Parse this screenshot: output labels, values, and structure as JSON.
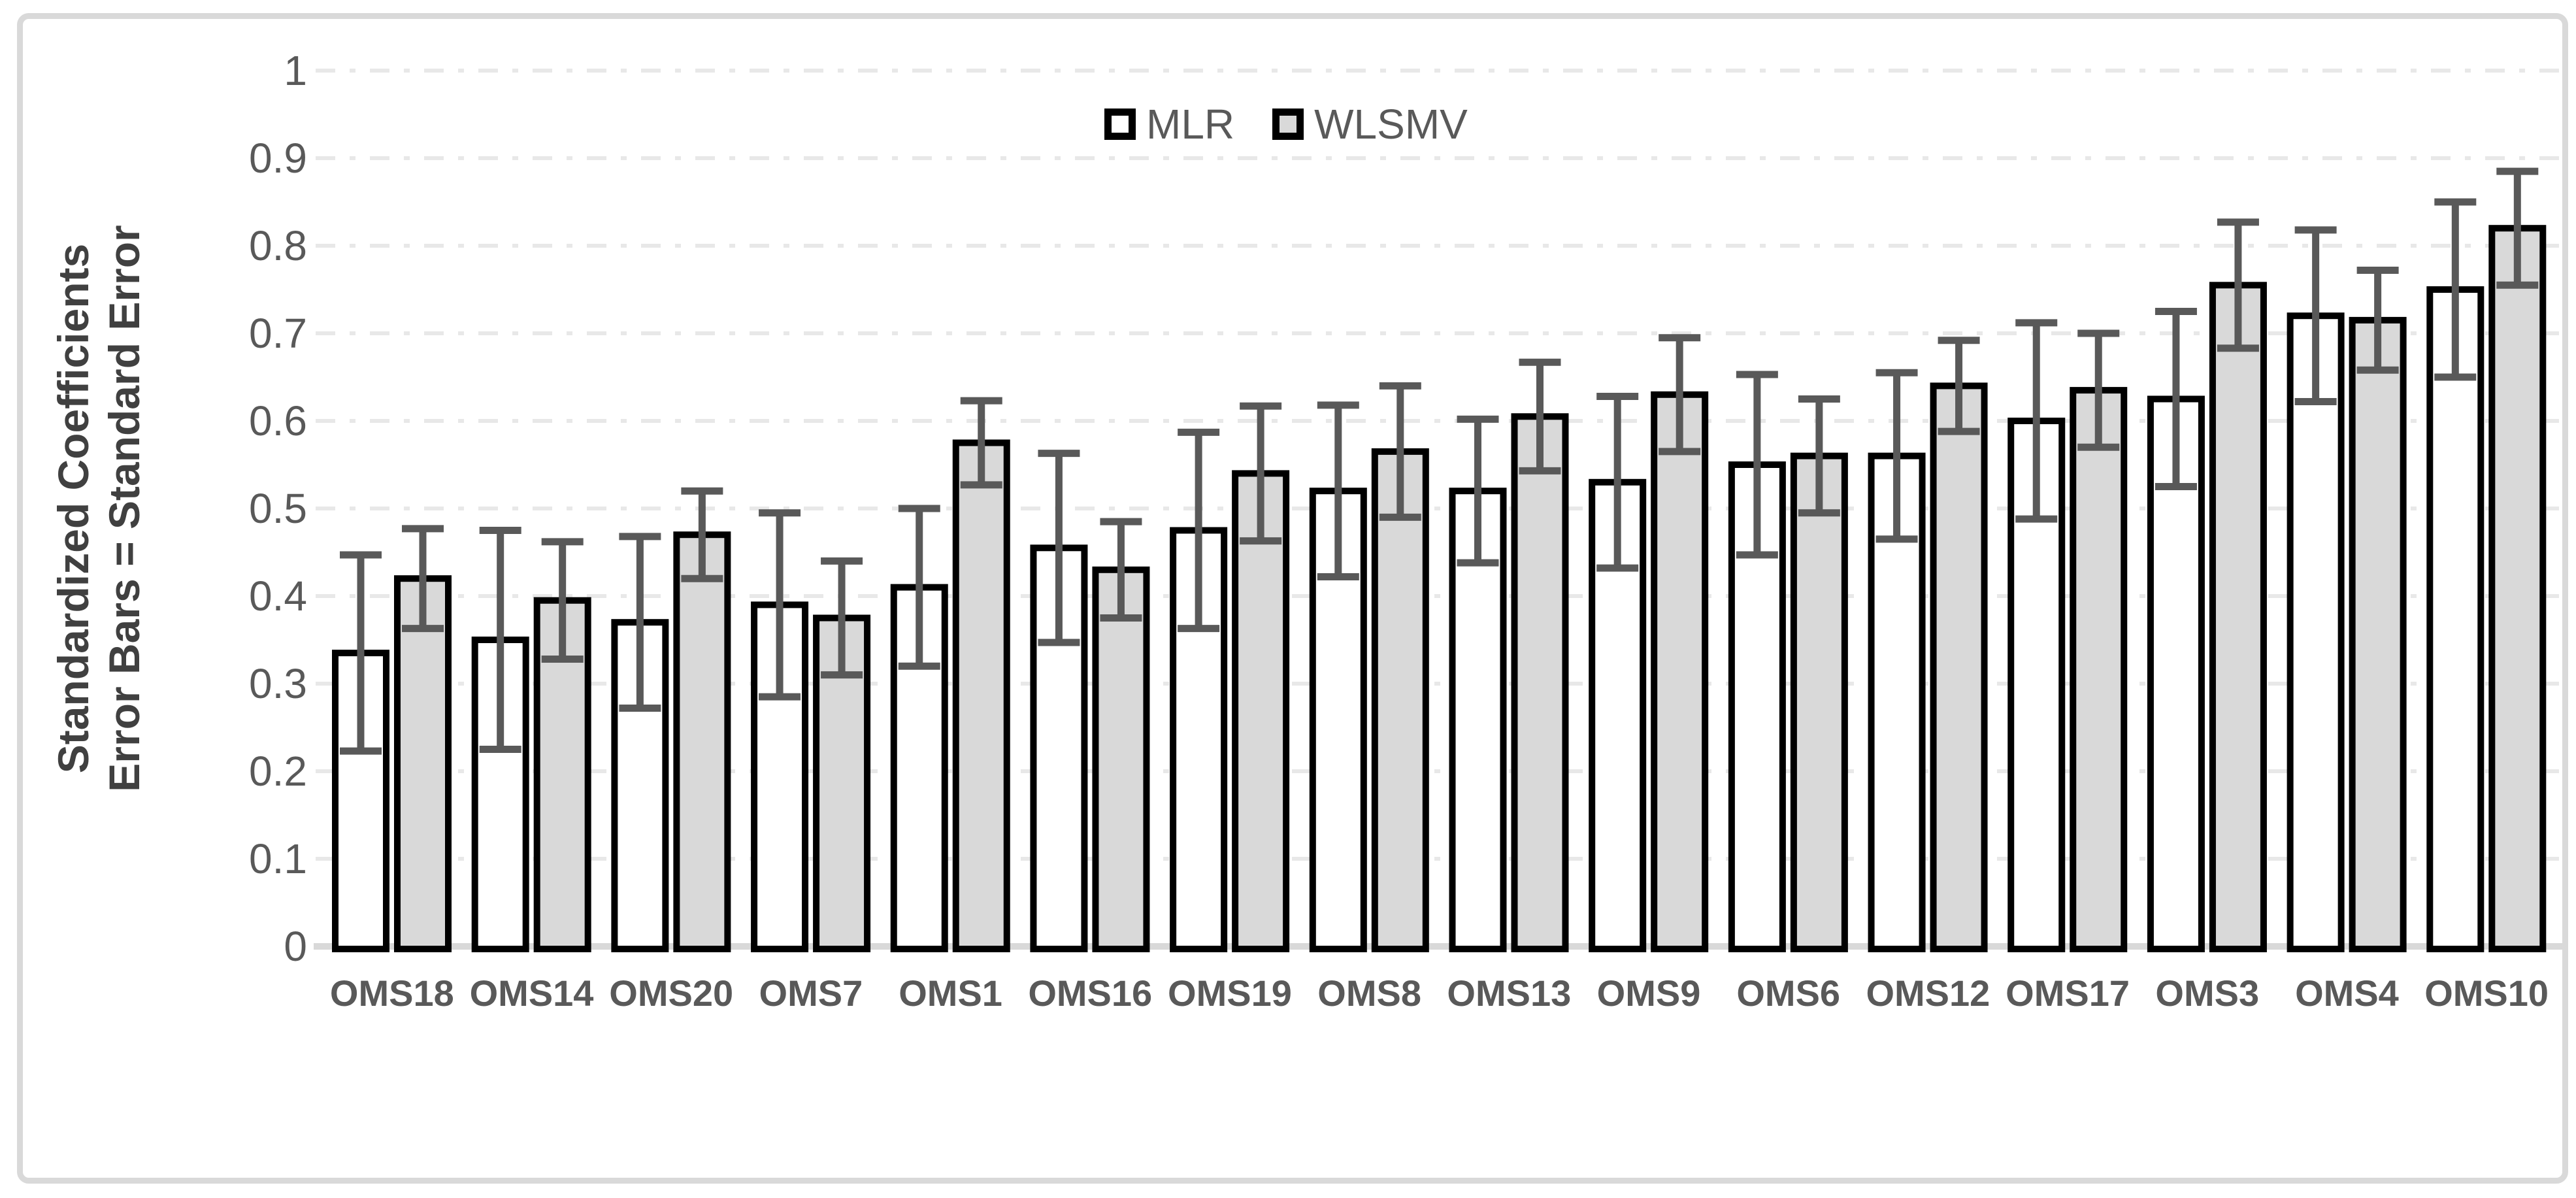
{
  "chart": {
    "y_axis_title_line1": "Standardized Coefficients",
    "y_axis_title_line2": "Error Bars = Standard Error",
    "legend_labels": [
      "MLR",
      "WLSMV"
    ]
  },
  "chart_data": {
    "type": "bar",
    "title": "",
    "xlabel": "",
    "ylabel": "Standardized Coefficients / Error Bars = Standard Error",
    "ylim": [
      0,
      1
    ],
    "ytick_labels": [
      "0",
      "0.1",
      "0.2",
      "0.3",
      "0.4",
      "0.5",
      "0.6",
      "0.7",
      "0.8",
      "0.9",
      "1"
    ],
    "grid": true,
    "legend_position": "top-center",
    "error_bars": "standard error, symmetric, both directions",
    "categories": [
      "OMS18",
      "OMS14",
      "OMS20",
      "OMS7",
      "OMS1",
      "OMS16",
      "OMS19",
      "OMS8",
      "OMS13",
      "OMS9",
      "OMS6",
      "OMS12",
      "OMS17",
      "OMS3",
      "OMS4",
      "OMS10"
    ],
    "series": [
      {
        "name": "MLR",
        "fill": "#ffffff",
        "values": [
          0.335,
          0.35,
          0.37,
          0.39,
          0.41,
          0.455,
          0.475,
          0.52,
          0.52,
          0.53,
          0.55,
          0.56,
          0.6,
          0.625,
          0.72,
          0.75
        ],
        "standard_errors": [
          0.112,
          0.125,
          0.098,
          0.105,
          0.09,
          0.108,
          0.112,
          0.098,
          0.082,
          0.098,
          0.103,
          0.095,
          0.112,
          0.1,
          0.098,
          0.1
        ]
      },
      {
        "name": "WLSMV",
        "fill": "#d9d9d9",
        "values": [
          0.42,
          0.395,
          0.47,
          0.375,
          0.575,
          0.43,
          0.54,
          0.565,
          0.605,
          0.63,
          0.56,
          0.64,
          0.635,
          0.755,
          0.715,
          0.82
        ],
        "standard_errors": [
          0.057,
          0.067,
          0.05,
          0.065,
          0.048,
          0.055,
          0.077,
          0.075,
          0.062,
          0.065,
          0.065,
          0.052,
          0.065,
          0.072,
          0.057,
          0.065
        ]
      }
    ]
  },
  "colors": {
    "bar_border": "#000000",
    "mlr_fill": "#ffffff",
    "wlsmv_fill": "#d9d9d9",
    "error_bar": "#595959",
    "gridline": "#e8e8e8",
    "axis_line": "#d9d9d9",
    "tick_label": "#595959",
    "category_label": "#595959",
    "axis_title": "#404040",
    "frame_border": "#d9d9d9",
    "background": "#ffffff"
  }
}
